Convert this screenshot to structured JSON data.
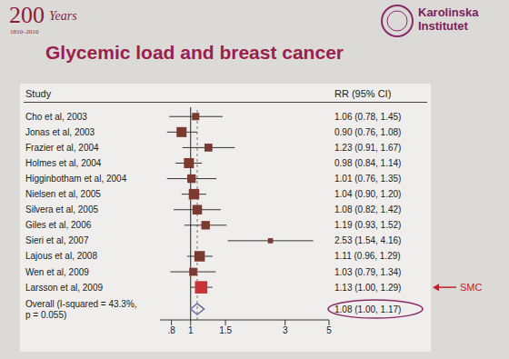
{
  "slide": {
    "logo_number": "200",
    "logo_years": "1810–2010",
    "logo_word": "Years",
    "institution": [
      "Karolinska",
      "Institutet"
    ]
  },
  "chart_data": {
    "type": "forest",
    "title": "Glycemic load and breast cancer",
    "column_heads": [
      "Study",
      "RR (95% CI)"
    ],
    "categories": [
      "Cho et al, 2003",
      "Jonas et al, 2003",
      "Frazier et al, 2004",
      "Holmes et al, 2004",
      "Higginbotham et al, 2004",
      "Nielsen et al, 2005",
      "Silvera et al, 2005",
      "Giles et al, 2006",
      "Sieri et al, 2007",
      "Lajous et al, 2008",
      "Wen et al, 2009",
      "Larsson et al, 2009"
    ],
    "values": [
      1.06,
      0.9,
      1.23,
      0.98,
      1.01,
      1.04,
      1.08,
      1.19,
      2.53,
      1.11,
      1.03,
      1.13
    ],
    "ci_low": [
      0.78,
      0.76,
      0.91,
      0.84,
      0.76,
      0.9,
      0.82,
      0.93,
      1.54,
      0.96,
      0.79,
      1.0
    ],
    "ci_high": [
      1.45,
      1.08,
      1.67,
      1.14,
      1.35,
      1.2,
      1.42,
      1.52,
      4.16,
      1.29,
      1.34,
      1.29
    ],
    "value_labels": [
      "1.06 (0.78, 1.45)",
      "0.90 (0.76, 1.08)",
      "1.23 (0.91, 1.67)",
      "0.98 (0.84, 1.14)",
      "1.01 (0.76, 1.35)",
      "1.04 (0.90, 1.20)",
      "1.08 (0.82, 1.42)",
      "1.19 (0.93, 1.52)",
      "2.53 (1.54, 4.16)",
      "1.11 (0.96, 1.29)",
      "1.03 (0.79, 1.34)",
      "1.13 (1.00, 1.29)"
    ],
    "weights": [
      4,
      9,
      5,
      9,
      6,
      10,
      8,
      6,
      1.5,
      10,
      5,
      15
    ],
    "colors": [
      "#7a3a30",
      "#7a3a30",
      "#7a3a30",
      "#7a3a30",
      "#7a3a30",
      "#7a3a30",
      "#7a3a30",
      "#7a3a30",
      "#7a3a30",
      "#7a3a30",
      "#7a3a30",
      "#c8333a"
    ],
    "overall": {
      "label": "Overall (I-squared = 43.3%, p = 0.055)",
      "value": 1.08,
      "ci_low": 1.0,
      "ci_high": 1.17,
      "value_label": "1.08 (1.00, 1.17)",
      "color": "#6f72a8"
    },
    "reference_line": 1,
    "annotations": [
      {
        "text": "SMC",
        "category": "Larsson et al, 2009",
        "color": "#c0202a"
      }
    ],
    "log": "x",
    "xlim": [
      0.7,
      5
    ],
    "xticks": [
      {
        "value": 0.8,
        "label": ".8"
      },
      1,
      1.5,
      3,
      5
    ]
  }
}
